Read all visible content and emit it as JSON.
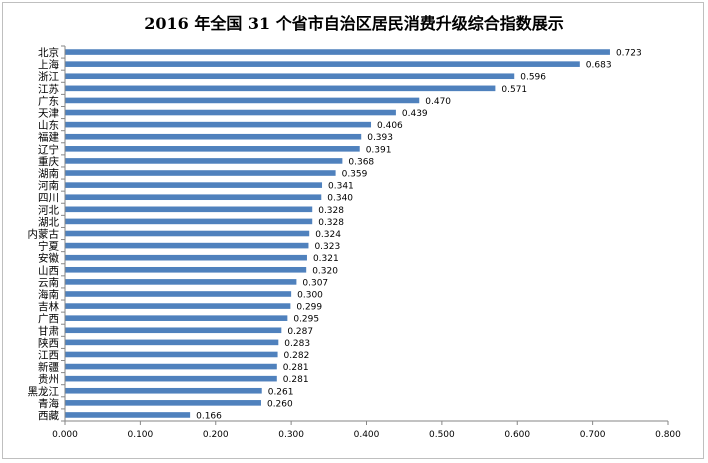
{
  "chart_data": {
    "type": "bar",
    "orientation": "horizontal",
    "title": "2016 年全国 31 个省市自治区居民消费升级综合指数展示",
    "categories": [
      "北京",
      "上海",
      "浙江",
      "江苏",
      "广东",
      "天津",
      "山东",
      "福建",
      "辽宁",
      "重庆",
      "湖南",
      "河南",
      "四川",
      "河北",
      "湖北",
      "内蒙古",
      "宁夏",
      "安徽",
      "山西",
      "云南",
      "海南",
      "吉林",
      "广西",
      "甘肃",
      "陕西",
      "江西",
      "新疆",
      "贵州",
      "黑龙江",
      "青海",
      "西藏"
    ],
    "values": [
      0.723,
      0.683,
      0.596,
      0.571,
      0.47,
      0.439,
      0.406,
      0.393,
      0.391,
      0.368,
      0.359,
      0.341,
      0.34,
      0.328,
      0.328,
      0.324,
      0.323,
      0.321,
      0.32,
      0.307,
      0.3,
      0.299,
      0.295,
      0.287,
      0.283,
      0.282,
      0.281,
      0.281,
      0.261,
      0.26,
      0.166
    ],
    "value_labels": [
      "0.723",
      "0.683",
      "0.596",
      "0.571",
      "0.470",
      "0.439",
      "0.406",
      "0.393",
      "0.391",
      "0.368",
      "0.359",
      "0.341",
      "0.340",
      "0.328",
      "0.328",
      "0.324",
      "0.323",
      "0.321",
      "0.320",
      "0.307",
      "0.300",
      "0.299",
      "0.295",
      "0.287",
      "0.283",
      "0.282",
      "0.281",
      "0.281",
      "0.261",
      "0.260",
      "0.166"
    ],
    "xlim": [
      0,
      0.8
    ],
    "x_ticks": [
      "0.000",
      "0.100",
      "0.200",
      "0.300",
      "0.400",
      "0.500",
      "0.600",
      "0.700",
      "0.800"
    ],
    "grid": false,
    "legend": "none",
    "bar_color": "#4f81bd"
  }
}
